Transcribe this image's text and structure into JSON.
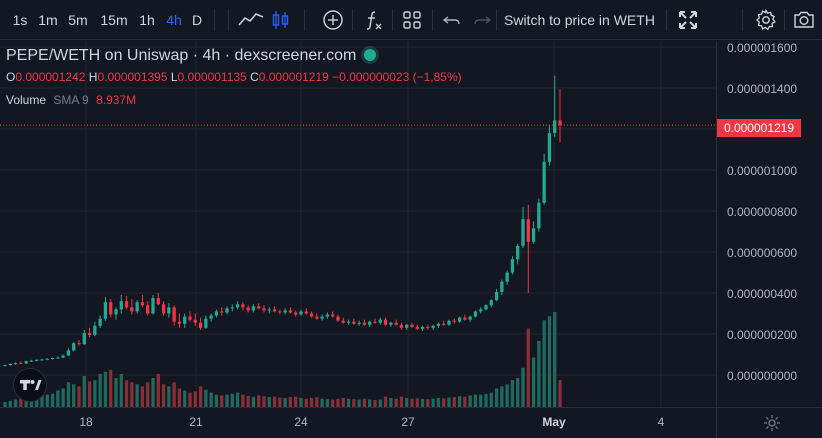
{
  "toolbar": {
    "intervals": [
      "1s",
      "1m",
      "5m",
      "15m",
      "1h",
      "4h",
      "D"
    ],
    "active_interval": "4h",
    "switch_label": "Switch to price in WETH"
  },
  "legend": {
    "title": "PEPE/WETH on Uniswap · 4h · dexscreener.com",
    "o_key": "O",
    "o_val": "0.000001242",
    "h_key": "H",
    "h_val": "0.000001395",
    "l_key": "L",
    "l_val": "0.000001135",
    "c_key": "C",
    "c_val": "0.000001219",
    "change": "−0.000000023 (−1.85%)",
    "volume_label": "Volume",
    "sma_label": "SMA 9",
    "volume_value": "8.937M"
  },
  "price_axis": [
    "0.000001600",
    "0.000001400",
    "0.000001200",
    "0.000001000",
    "0.000000800",
    "0.000000600",
    "0.000000400",
    "0.000000200",
    "0.000000000"
  ],
  "current_price": "0.000001219",
  "time_axis": [
    "18",
    "21",
    "24",
    "27",
    "May",
    "4"
  ],
  "colors": {
    "up": "#22ab94",
    "down": "#f23645",
    "up_vol": "#1e6b5d",
    "down_vol": "#8a2e38"
  },
  "chart_data": {
    "type": "candlestick",
    "title": "PEPE/WETH on Uniswap · 4h · dexscreener.com",
    "ylim": [
      0,
      1.6e-06
    ],
    "x_ticks": [
      "18",
      "21",
      "24",
      "27",
      "May",
      "4"
    ],
    "candles": [
      [
        4.5e-08,
        5e-08,
        4.2e-08,
        4.8e-08,
        0.12
      ],
      [
        4.8e-08,
        5.6e-08,
        4.6e-08,
        5.4e-08,
        0.15
      ],
      [
        5.4e-08,
        6.2e-08,
        5e-08,
        5.8e-08,
        0.18
      ],
      [
        5.8e-08,
        6.6e-08,
        5.4e-08,
        5.6e-08,
        0.2
      ],
      [
        5.6e-08,
        7e-08,
        5.4e-08,
        6.8e-08,
        0.25
      ],
      [
        6.8e-08,
        7.4e-08,
        6.4e-08,
        7e-08,
        0.3
      ],
      [
        7e-08,
        7.6e-08,
        6.6e-08,
        7.4e-08,
        0.28
      ],
      [
        7.4e-08,
        8e-08,
        7e-08,
        7.6e-08,
        0.35
      ],
      [
        7.6e-08,
        8.2e-08,
        7.2e-08,
        7.9e-08,
        0.3
      ],
      [
        7.9e-08,
        8.5e-08,
        7.5e-08,
        8.3e-08,
        0.32
      ],
      [
        8.3e-08,
        9e-08,
        8e-08,
        8.5e-08,
        0.4
      ],
      [
        8.5e-08,
        1e-07,
        8.3e-08,
        9.5e-08,
        0.45
      ],
      [
        9.5e-08,
        1.3e-07,
        9.3e-08,
        1.2e-07,
        0.6
      ],
      [
        1.2e-07,
        1.6e-07,
        1.15e-07,
        1.55e-07,
        0.55
      ],
      [
        1.55e-07,
        1.7e-07,
        1.45e-07,
        1.5e-07,
        0.5
      ],
      [
        1.5e-07,
        2.2e-07,
        1.48e-07,
        2.05e-07,
        0.75
      ],
      [
        2.05e-07,
        2.3e-07,
        1.85e-07,
        1.95e-07,
        0.62
      ],
      [
        1.95e-07,
        2.6e-07,
        1.9e-07,
        2.4e-07,
        0.65
      ],
      [
        2.4e-07,
        2.9e-07,
        2.3e-07,
        2.75e-07,
        0.8
      ],
      [
        2.75e-07,
        3.8e-07,
        2.65e-07,
        3.55e-07,
        0.85
      ],
      [
        3.55e-07,
        3.7e-07,
        2.8e-07,
        2.95e-07,
        0.9
      ],
      [
        2.95e-07,
        3.3e-07,
        2.7e-07,
        3.2e-07,
        0.7
      ],
      [
        3.2e-07,
        3.9e-07,
        3e-07,
        3.6e-07,
        0.8
      ],
      [
        3.6e-07,
        3.85e-07,
        3.2e-07,
        3.3e-07,
        0.65
      ],
      [
        3.3e-07,
        3.7e-07,
        2.95e-07,
        3.1e-07,
        0.6
      ],
      [
        3.1e-07,
        3.65e-07,
        3e-07,
        3.55e-07,
        0.55
      ],
      [
        3.55e-07,
        3.9e-07,
        3.3e-07,
        3.4e-07,
        0.5
      ],
      [
        3.4e-07,
        3.6e-07,
        2.9e-07,
        3e-07,
        0.6
      ],
      [
        3e-07,
        3.9e-07,
        2.95e-07,
        3.75e-07,
        0.7
      ],
      [
        3.75e-07,
        4e-07,
        3.4e-07,
        3.45e-07,
        0.8
      ],
      [
        3.45e-07,
        3.6e-07,
        2.9e-07,
        3e-07,
        0.55
      ],
      [
        3e-07,
        3.5e-07,
        2.8e-07,
        3.3e-07,
        0.5
      ],
      [
        3.3e-07,
        3.4e-07,
        2.4e-07,
        2.6e-07,
        0.6
      ],
      [
        2.6e-07,
        3e-07,
        2.3e-07,
        2.5e-07,
        0.45
      ],
      [
        2.5e-07,
        3e-07,
        2.3e-07,
        2.85e-07,
        0.4
      ],
      [
        2.85e-07,
        3.1e-07,
        2.6e-07,
        2.7e-07,
        0.35
      ],
      [
        2.7e-07,
        3e-07,
        2.4e-07,
        2.55e-07,
        0.38
      ],
      [
        2.55e-07,
        2.8e-07,
        2.2e-07,
        2.3e-07,
        0.5
      ],
      [
        2.3e-07,
        2.9e-07,
        2.25e-07,
        2.75e-07,
        0.42
      ],
      [
        2.75e-07,
        3e-07,
        2.6e-07,
        2.9e-07,
        0.35
      ],
      [
        2.9e-07,
        3.2e-07,
        2.8e-07,
        3.1e-07,
        0.3
      ],
      [
        3.1e-07,
        3.3e-07,
        2.9e-07,
        3.05e-07,
        0.28
      ],
      [
        3.05e-07,
        3.35e-07,
        2.95e-07,
        3.25e-07,
        0.3
      ],
      [
        3.25e-07,
        3.45e-07,
        3.1e-07,
        3.3e-07,
        0.32
      ],
      [
        3.3e-07,
        3.6e-07,
        3.2e-07,
        3.45e-07,
        0.35
      ],
      [
        3.45e-07,
        3.55e-07,
        3.15e-07,
        3.3e-07,
        0.3
      ],
      [
        3.3e-07,
        3.4e-07,
        3.05e-07,
        3.15e-07,
        0.27
      ],
      [
        3.15e-07,
        3.45e-07,
        3.05e-07,
        3.35e-07,
        0.25
      ],
      [
        3.35e-07,
        3.5e-07,
        3.2e-07,
        3.25e-07,
        0.28
      ],
      [
        3.25e-07,
        3.4e-07,
        3.05e-07,
        3.15e-07,
        0.26
      ],
      [
        3.15e-07,
        3.3e-07,
        3e-07,
        3.2e-07,
        0.24
      ],
      [
        3.2e-07,
        3.35e-07,
        3.05e-07,
        3.1e-07,
        0.25
      ],
      [
        3.1e-07,
        3.2e-07,
        2.95e-07,
        3.05e-07,
        0.23
      ],
      [
        3.05e-07,
        3.25e-07,
        2.95e-07,
        3.15e-07,
        0.22
      ],
      [
        3.15e-07,
        3.3e-07,
        3e-07,
        3.05e-07,
        0.24
      ],
      [
        3.05e-07,
        3.15e-07,
        2.85e-07,
        2.95e-07,
        0.25
      ],
      [
        2.95e-07,
        3.2e-07,
        2.9e-07,
        3.1e-07,
        0.22
      ],
      [
        3.1e-07,
        3.25e-07,
        2.95e-07,
        3e-07,
        0.2
      ],
      [
        3e-07,
        3.1e-07,
        2.8e-07,
        2.85e-07,
        0.22
      ],
      [
        2.85e-07,
        3e-07,
        2.7e-07,
        2.75e-07,
        0.24
      ],
      [
        2.75e-07,
        2.95e-07,
        2.65e-07,
        2.85e-07,
        0.2
      ],
      [
        2.85e-07,
        3.05e-07,
        2.75e-07,
        2.95e-07,
        0.19
      ],
      [
        2.95e-07,
        3.1e-07,
        2.8e-07,
        2.85e-07,
        0.18
      ],
      [
        2.85e-07,
        2.95e-07,
        2.6e-07,
        2.65e-07,
        0.2
      ],
      [
        2.65e-07,
        2.8e-07,
        2.5e-07,
        2.55e-07,
        0.22
      ],
      [
        2.55e-07,
        2.7e-07,
        2.45e-07,
        2.6e-07,
        0.2
      ],
      [
        2.6e-07,
        2.75e-07,
        2.45e-07,
        2.5e-07,
        0.19
      ],
      [
        2.5e-07,
        2.65e-07,
        2.4e-07,
        2.55e-07,
        0.18
      ],
      [
        2.55e-07,
        2.7e-07,
        2.4e-07,
        2.45e-07,
        0.2
      ],
      [
        2.45e-07,
        2.65e-07,
        2.35e-07,
        2.6e-07,
        0.18
      ],
      [
        2.6e-07,
        2.75e-07,
        2.5e-07,
        2.55e-07,
        0.17
      ],
      [
        2.55e-07,
        2.8e-07,
        2.45e-07,
        2.7e-07,
        0.18
      ],
      [
        2.7e-07,
        2.8e-07,
        2.4e-07,
        2.45e-07,
        0.25
      ],
      [
        2.45e-07,
        2.6e-07,
        2.35e-07,
        2.55e-07,
        0.22
      ],
      [
        2.55e-07,
        2.7e-07,
        2.4e-07,
        2.45e-07,
        0.2
      ],
      [
        2.45e-07,
        2.55e-07,
        2.2e-07,
        2.3e-07,
        0.25
      ],
      [
        2.3e-07,
        2.5e-07,
        2.2e-07,
        2.45e-07,
        0.22
      ],
      [
        2.45e-07,
        2.55e-07,
        2.3e-07,
        2.35e-07,
        0.2
      ],
      [
        2.35e-07,
        2.45e-07,
        2.2e-07,
        2.25e-07,
        0.21
      ],
      [
        2.25e-07,
        2.4e-07,
        2.15e-07,
        2.35e-07,
        0.2
      ],
      [
        2.35e-07,
        2.45e-07,
        2.2e-07,
        2.3e-07,
        0.19
      ],
      [
        2.3e-07,
        2.45e-07,
        2.2e-07,
        2.4e-07,
        0.2
      ],
      [
        2.4e-07,
        2.55e-07,
        2.3e-07,
        2.5e-07,
        0.22
      ],
      [
        2.5e-07,
        2.65e-07,
        2.4e-07,
        2.45e-07,
        0.21
      ],
      [
        2.45e-07,
        2.7e-07,
        2.4e-07,
        2.65e-07,
        0.23
      ],
      [
        2.65e-07,
        2.75e-07,
        2.5e-07,
        2.6e-07,
        0.24
      ],
      [
        2.6e-07,
        2.85e-07,
        2.55e-07,
        2.8e-07,
        0.26
      ],
      [
        2.8e-07,
        2.95e-07,
        2.65e-07,
        2.7e-07,
        0.25
      ],
      [
        2.7e-07,
        2.9e-07,
        2.6e-07,
        2.85e-07,
        0.28
      ],
      [
        2.85e-07,
        3.15e-07,
        2.8e-07,
        3.1e-07,
        0.3
      ],
      [
        3.1e-07,
        3.3e-07,
        3e-07,
        3.2e-07,
        0.3
      ],
      [
        3.2e-07,
        3.45e-07,
        3.15e-07,
        3.4e-07,
        0.32
      ],
      [
        3.4e-07,
        3.7e-07,
        3.3e-07,
        3.65e-07,
        0.35
      ],
      [
        3.65e-07,
        4.2e-07,
        3.6e-07,
        4.05e-07,
        0.45
      ],
      [
        4.05e-07,
        4.65e-07,
        3.9e-07,
        4.55e-07,
        0.5
      ],
      [
        4.55e-07,
        5.1e-07,
        4.4e-07,
        5e-07,
        0.55
      ],
      [
        5e-07,
        5.8e-07,
        4.9e-07,
        5.65e-07,
        0.65
      ],
      [
        5.65e-07,
        6.4e-07,
        5.4e-07,
        6.3e-07,
        0.7
      ],
      [
        6.3e-07,
        8.2e-07,
        6.2e-07,
        7.6e-07,
        0.95
      ],
      [
        7.6e-07,
        8.3e-07,
        4e-07,
        6.5e-07,
        1.9
      ],
      [
        6.5e-07,
        7.5e-07,
        6.4e-07,
        7.15e-07,
        1.2
      ],
      [
        7.15e-07,
        8.6e-07,
        7e-07,
        8.4e-07,
        1.6
      ],
      [
        8.4e-07,
        1.08e-06,
        8.3e-07,
        1.04e-06,
        2.1
      ],
      [
        1.04e-06,
        1.22e-06,
        1.02e-06,
        1.18e-06,
        2.2
      ],
      [
        1.18e-06,
        1.46e-06,
        1.16e-06,
        1.242e-06,
        2.3
      ],
      [
        1.242e-06,
        1.395e-06,
        1.135e-06,
        1.219e-06,
        0.65
      ]
    ]
  }
}
